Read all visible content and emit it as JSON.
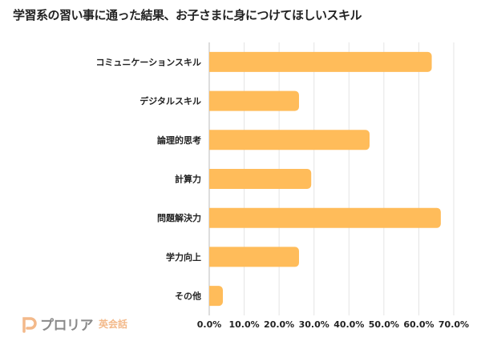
{
  "chart_data": {
    "type": "bar",
    "orientation": "horizontal",
    "title": "学習系の習い事に通った結果、お子さまに身につけてほしいスキル",
    "categories": [
      "コミュニケーションスキル",
      "デジタルスキル",
      "論理的思考",
      "計算力",
      "問題解決力",
      "学力向上",
      "その他"
    ],
    "values": [
      63.7,
      25.7,
      45.9,
      29.2,
      66.3,
      25.7,
      3.9
    ],
    "unit": "%",
    "xlim": [
      0,
      70
    ],
    "xticks": [
      "0.0%",
      "10.0%",
      "20.0%",
      "30.0%",
      "40.0%",
      "50.0%",
      "60.0%",
      "70.0%"
    ],
    "grid": true,
    "bar_color": "#FFBC5A",
    "legend": "none"
  },
  "logo": {
    "brand": "プロリア",
    "sub": "英会話",
    "color": "#F3B98A"
  }
}
